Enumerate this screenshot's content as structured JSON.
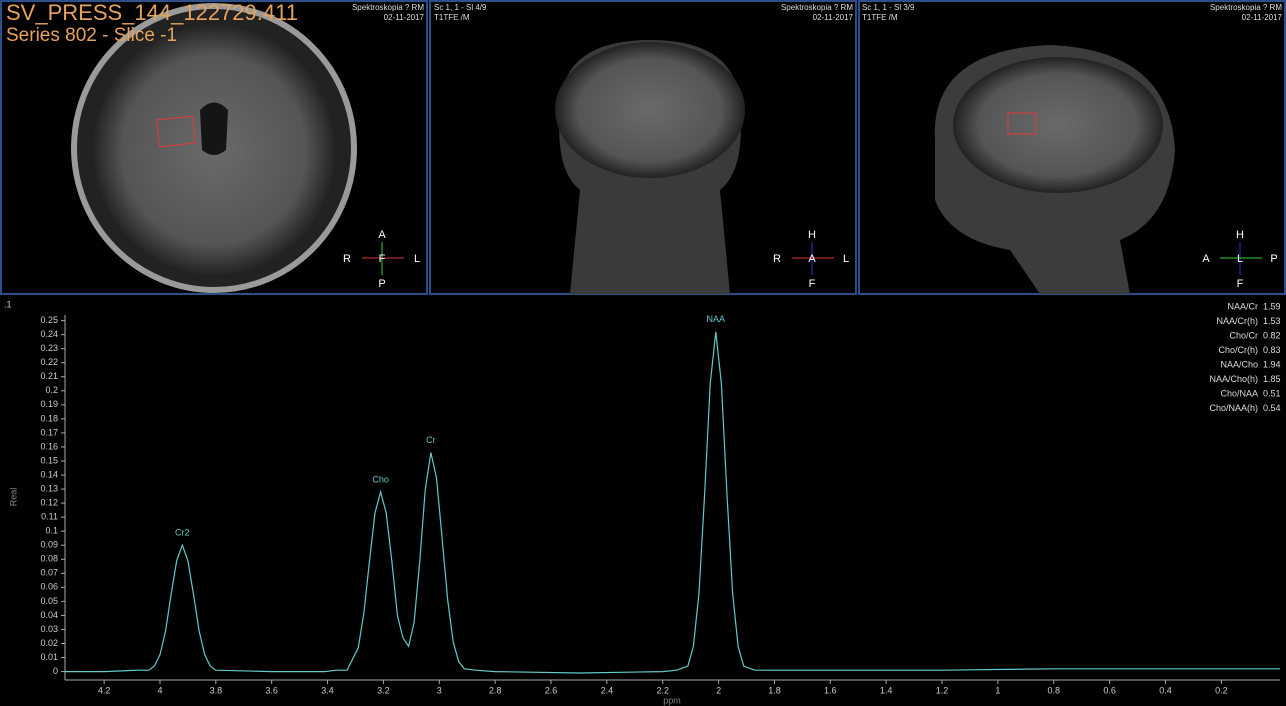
{
  "viewports": [
    {
      "title": "SV_PRESS_144_122729.411",
      "series": "Series 802 - Slice -1",
      "study": "Spektroskopia ? RM",
      "date": "02-11-2017",
      "orientation": {
        "top": "A",
        "left": "R",
        "center": "F",
        "right": "L",
        "bottom": "P"
      }
    },
    {
      "info": "Sc 1, 1 - Sl 4/9",
      "sequence": "T1TFE /M",
      "study": "Spektroskopia ? RM",
      "date": "02-11-2017",
      "orientation": {
        "top": "H",
        "left": "R",
        "center": "A",
        "right": "L",
        "bottom": "F"
      }
    },
    {
      "info": "Sc 1, 1 - Sl 3/9",
      "sequence": "T1TFE /M",
      "study": "Spektroskopia ? RM",
      "date": "02-11-2017",
      "orientation": {
        "top": "H",
        "left": "A",
        "center": "L",
        "right": "P",
        "bottom": "F"
      }
    }
  ],
  "chart_data": {
    "type": "line",
    "corner_label": ".1",
    "xlabel": "ppm",
    "ylabel": "Real",
    "x": [
      4.34,
      4.2,
      4.08,
      4.04,
      4.02,
      4.0,
      3.98,
      3.96,
      3.94,
      3.92,
      3.9,
      3.88,
      3.86,
      3.84,
      3.82,
      3.8,
      3.6,
      3.41,
      3.37,
      3.33,
      3.29,
      3.27,
      3.25,
      3.23,
      3.21,
      3.19,
      3.17,
      3.15,
      3.13,
      3.11,
      3.09,
      3.07,
      3.05,
      3.03,
      3.01,
      2.99,
      2.97,
      2.95,
      2.93,
      2.91,
      2.87,
      2.8,
      2.5,
      2.2,
      2.15,
      2.11,
      2.09,
      2.07,
      2.05,
      2.03,
      2.01,
      1.99,
      1.97,
      1.95,
      1.93,
      1.91,
      1.87,
      1.8,
      1.2,
      0.8,
      0.4,
      -0.01
    ],
    "series": [
      {
        "name": "Real",
        "color": "#63c9c9",
        "values": [
          0,
          0,
          0.001,
          0.001,
          0.004,
          0.012,
          0.029,
          0.055,
          0.079,
          0.09,
          0.079,
          0.055,
          0.029,
          0.012,
          0.004,
          0.001,
          0,
          0,
          0.001,
          0.001,
          0.017,
          0.042,
          0.078,
          0.113,
          0.128,
          0.113,
          0.079,
          0.04,
          0.024,
          0.018,
          0.035,
          0.078,
          0.13,
          0.156,
          0.138,
          0.095,
          0.051,
          0.021,
          0.007,
          0.002,
          0.001,
          0,
          -0.001,
          0,
          0.001,
          0.004,
          0.018,
          0.056,
          0.126,
          0.205,
          0.242,
          0.205,
          0.126,
          0.056,
          0.018,
          0.004,
          0.001,
          0.001,
          0.001,
          0.002,
          0.002,
          0.002
        ]
      }
    ],
    "xlim": [
      4.34,
      -0.01
    ],
    "ylim": [
      -0.006,
      0.254
    ],
    "xticks": [
      4.2,
      4,
      3.8,
      3.6,
      3.4,
      3.2,
      3,
      2.8,
      2.6,
      2.4,
      2.2,
      2,
      1.8,
      1.6,
      1.4,
      1.2,
      1,
      0.8,
      0.6,
      0.4,
      0.2
    ],
    "yticks": [
      0,
      0.01,
      0.02,
      0.03,
      0.04,
      0.05,
      0.06,
      0.07,
      0.08,
      0.09,
      0.1,
      0.11,
      0.12,
      0.13,
      0.14,
      0.15,
      0.16,
      0.17,
      0.18,
      0.19,
      0.2,
      0.21,
      0.22,
      0.23,
      0.24,
      0.25
    ],
    "annotations": [
      {
        "text": "Cr2",
        "x": 3.92,
        "y": 0.09
      },
      {
        "text": "Cho",
        "x": 3.21,
        "y": 0.128
      },
      {
        "text": "Cr",
        "x": 3.03,
        "y": 0.156
      },
      {
        "text": "NAA",
        "x": 2.01,
        "y": 0.242
      }
    ],
    "ratios": [
      {
        "name": "NAA/Cr",
        "value": 1.59
      },
      {
        "name": "NAA/Cr(h)",
        "value": 1.53
      },
      {
        "name": "Cho/Cr",
        "value": 0.82
      },
      {
        "name": "Cho/Cr(h)",
        "value": 0.83
      },
      {
        "name": "NAA/Cho",
        "value": 1.94
      },
      {
        "name": "NAA/Cho(h)",
        "value": 1.85
      },
      {
        "name": "Cho/NAA",
        "value": 0.51
      },
      {
        "name": "Cho/NAA(h)",
        "value": 0.54
      }
    ]
  }
}
